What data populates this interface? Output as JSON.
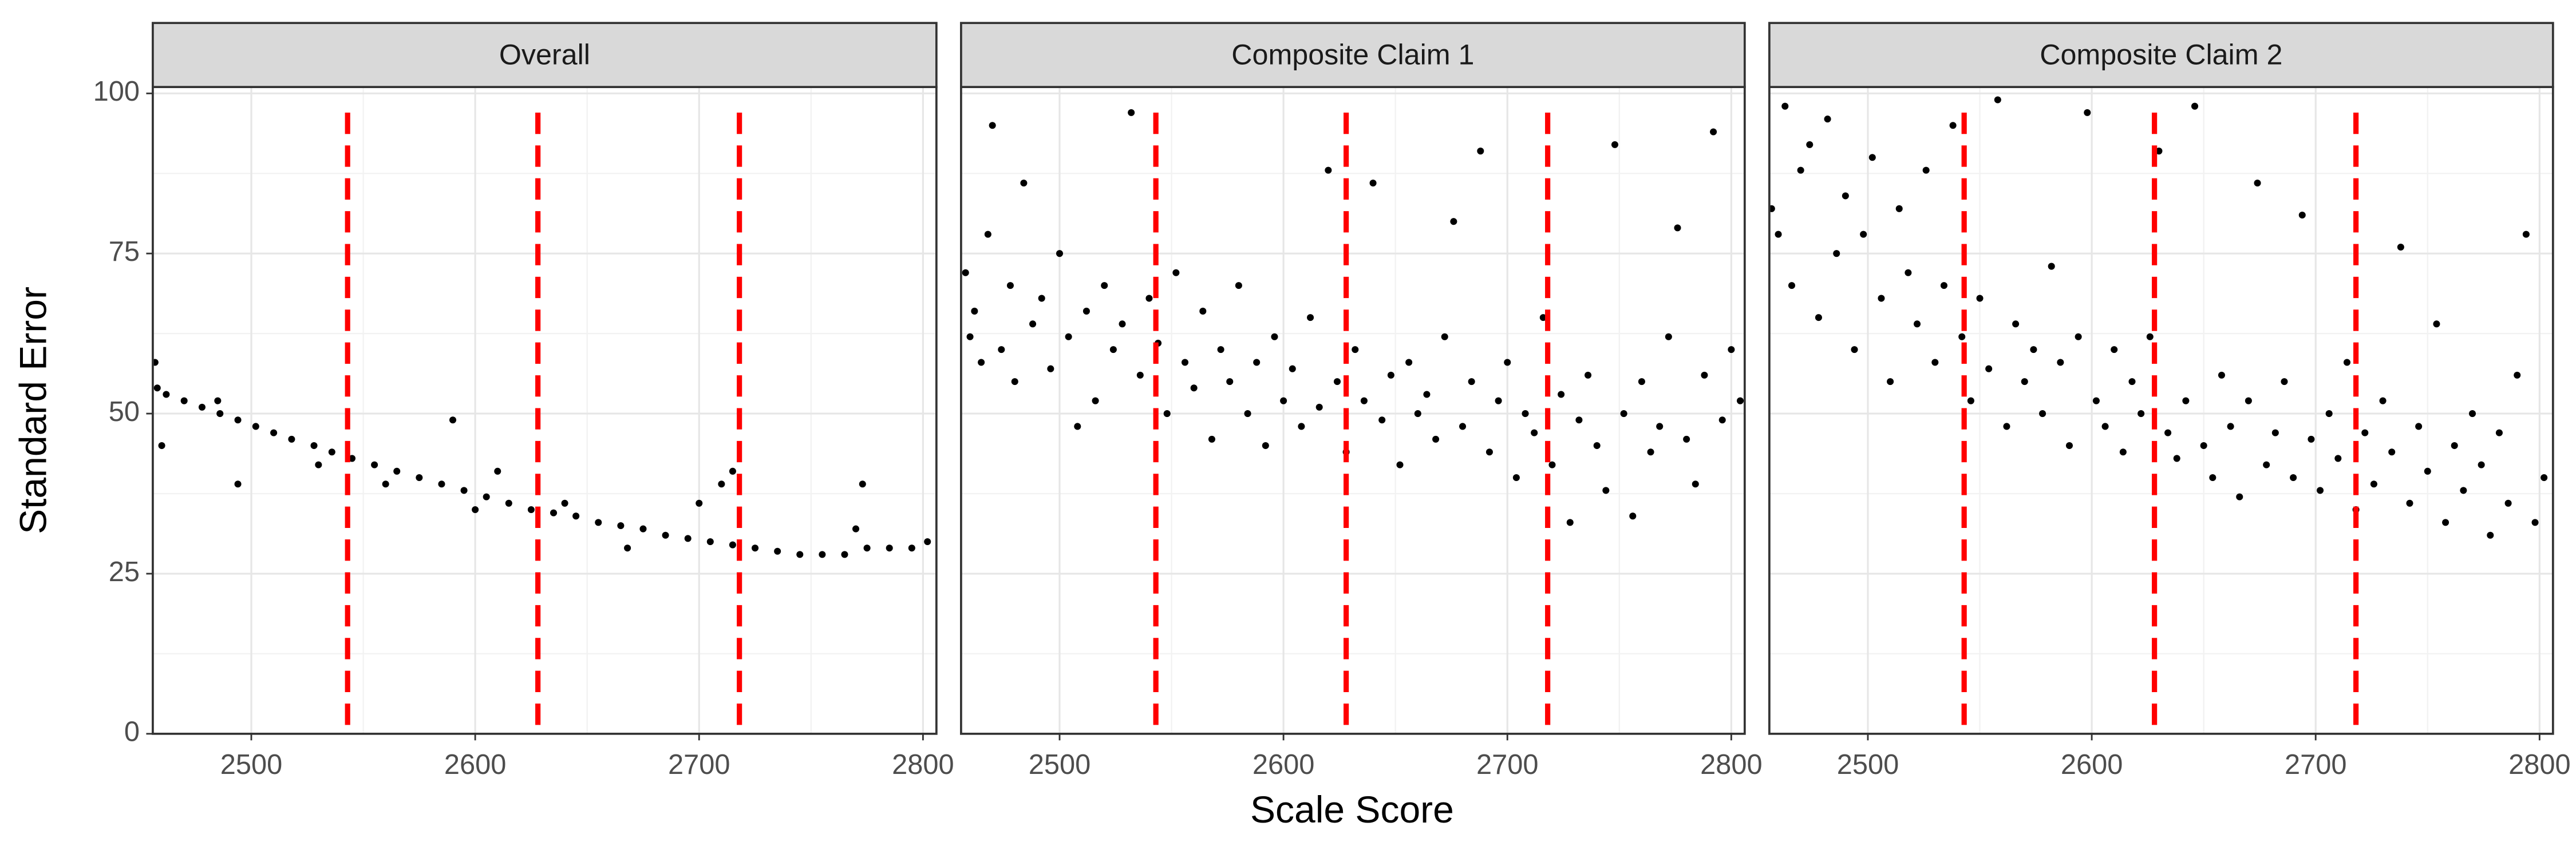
{
  "axis_labels": {
    "x": "Scale Score",
    "y": "Standard Error"
  },
  "chart_data": [
    {
      "type": "scatter",
      "title": "Overall",
      "color": "#000000",
      "grid": true,
      "xlim": [
        2456,
        2806
      ],
      "ylim": [
        0,
        101
      ],
      "xticks": [
        2500,
        2600,
        2700,
        2800
      ],
      "yticks": [
        0,
        25,
        50,
        75,
        100
      ],
      "x_minor_grid": [
        2550,
        2650,
        2750
      ],
      "y_minor_grid": [
        12.5,
        37.5,
        62.5,
        87.5
      ],
      "vlines": [
        2543,
        2628,
        2718
      ],
      "vline_color": "#ff0000",
      "x": [
        2457,
        2458,
        2462,
        2470,
        2478,
        2486,
        2494,
        2502,
        2510,
        2518,
        2528,
        2536,
        2545,
        2555,
        2565,
        2575,
        2585,
        2595,
        2605,
        2615,
        2625,
        2635,
        2645,
        2655,
        2665,
        2675,
        2685,
        2695,
        2705,
        2715,
        2725,
        2735,
        2745,
        2755,
        2765,
        2775,
        2785,
        2795,
        2802,
        2460,
        2494,
        2485,
        2530,
        2590,
        2600,
        2610,
        2700,
        2710,
        2715,
        2773,
        2770,
        2668,
        2560,
        2640
      ],
      "values": [
        58,
        54,
        53,
        52,
        51,
        50,
        49,
        48,
        47,
        46,
        45,
        44,
        43,
        42,
        41,
        40,
        39,
        38,
        37,
        36,
        35,
        34.5,
        34,
        33,
        32.5,
        32,
        31,
        30.5,
        30,
        29.5,
        29,
        28.5,
        28,
        28,
        28,
        29,
        29,
        29,
        30,
        45,
        39,
        52,
        42,
        49,
        35,
        41,
        36,
        39,
        41,
        39,
        32,
        29,
        39,
        36
      ]
    },
    {
      "type": "scatter",
      "title": "Composite Claim 1",
      "color": "#000000",
      "grid": true,
      "xlim": [
        2456,
        2806
      ],
      "ylim": [
        0,
        101
      ],
      "xticks": [
        2500,
        2600,
        2700,
        2800
      ],
      "yticks": [
        0,
        25,
        50,
        75,
        100
      ],
      "x_minor_grid": [
        2550,
        2650,
        2750
      ],
      "y_minor_grid": [
        12.5,
        37.5,
        62.5,
        87.5
      ],
      "vlines": [
        2543,
        2628,
        2718
      ],
      "vline_color": "#ff0000",
      "x": [
        2458,
        2460,
        2462,
        2465,
        2468,
        2470,
        2474,
        2478,
        2480,
        2484,
        2488,
        2492,
        2496,
        2500,
        2504,
        2508,
        2512,
        2516,
        2520,
        2524,
        2528,
        2532,
        2536,
        2540,
        2544,
        2548,
        2552,
        2556,
        2560,
        2564,
        2568,
        2572,
        2576,
        2580,
        2584,
        2588,
        2592,
        2596,
        2600,
        2604,
        2608,
        2612,
        2616,
        2620,
        2624,
        2628,
        2632,
        2636,
        2640,
        2644,
        2648,
        2652,
        2656,
        2660,
        2664,
        2668,
        2672,
        2676,
        2680,
        2684,
        2688,
        2692,
        2696,
        2700,
        2704,
        2708,
        2712,
        2716,
        2720,
        2724,
        2728,
        2732,
        2736,
        2740,
        2744,
        2748,
        2752,
        2756,
        2760,
        2764,
        2768,
        2772,
        2776,
        2780,
        2784,
        2788,
        2792,
        2796,
        2800,
        2804
      ],
      "values": [
        72,
        62,
        66,
        58,
        78,
        95,
        60,
        70,
        55,
        86,
        64,
        68,
        57,
        75,
        62,
        48,
        66,
        52,
        70,
        60,
        64,
        97,
        56,
        68,
        61,
        50,
        72,
        58,
        54,
        66,
        46,
        60,
        55,
        70,
        50,
        58,
        45,
        62,
        52,
        57,
        48,
        65,
        51,
        88,
        55,
        44,
        60,
        52,
        86,
        49,
        56,
        42,
        58,
        50,
        53,
        46,
        62,
        80,
        48,
        55,
        91,
        44,
        52,
        58,
        40,
        50,
        47,
        65,
        42,
        53,
        33,
        49,
        56,
        45,
        38,
        92,
        50,
        34,
        55,
        44,
        48,
        62,
        79,
        46,
        39,
        56,
        94,
        49,
        60,
        52
      ]
    },
    {
      "type": "scatter",
      "title": "Composite Claim 2",
      "color": "#000000",
      "grid": true,
      "xlim": [
        2456,
        2806
      ],
      "ylim": [
        0,
        101
      ],
      "xticks": [
        2500,
        2600,
        2700,
        2800
      ],
      "yticks": [
        0,
        25,
        50,
        75,
        100
      ],
      "x_minor_grid": [
        2550,
        2650,
        2750
      ],
      "y_minor_grid": [
        12.5,
        37.5,
        62.5,
        87.5
      ],
      "vlines": [
        2543,
        2628,
        2718
      ],
      "vline_color": "#ff0000",
      "x": [
        2457,
        2460,
        2463,
        2466,
        2470,
        2474,
        2478,
        2482,
        2486,
        2490,
        2494,
        2498,
        2502,
        2506,
        2510,
        2514,
        2518,
        2522,
        2526,
        2530,
        2534,
        2538,
        2542,
        2546,
        2550,
        2554,
        2558,
        2562,
        2566,
        2570,
        2574,
        2578,
        2582,
        2586,
        2590,
        2594,
        2598,
        2602,
        2606,
        2610,
        2614,
        2618,
        2622,
        2626,
        2630,
        2634,
        2638,
        2642,
        2646,
        2650,
        2654,
        2658,
        2662,
        2666,
        2670,
        2674,
        2678,
        2682,
        2686,
        2690,
        2694,
        2698,
        2702,
        2706,
        2710,
        2714,
        2718,
        2722,
        2726,
        2730,
        2734,
        2738,
        2742,
        2746,
        2750,
        2754,
        2758,
        2762,
        2766,
        2770,
        2774,
        2778,
        2782,
        2786,
        2790,
        2794,
        2798,
        2802
      ],
      "values": [
        82,
        78,
        98,
        70,
        88,
        92,
        65,
        96,
        75,
        84,
        60,
        78,
        90,
        68,
        55,
        82,
        72,
        64,
        88,
        58,
        70,
        95,
        62,
        52,
        68,
        57,
        99,
        48,
        64,
        55,
        60,
        50,
        73,
        58,
        45,
        62,
        97,
        52,
        48,
        60,
        44,
        55,
        50,
        62,
        91,
        47,
        43,
        52,
        98,
        45,
        40,
        56,
        48,
        37,
        52,
        86,
        42,
        47,
        55,
        40,
        81,
        46,
        38,
        50,
        43,
        58,
        35,
        47,
        39,
        52,
        44,
        76,
        36,
        48,
        41,
        64,
        33,
        45,
        38,
        50,
        42,
        31,
        47,
        36,
        56,
        78,
        33,
        40
      ]
    }
  ]
}
